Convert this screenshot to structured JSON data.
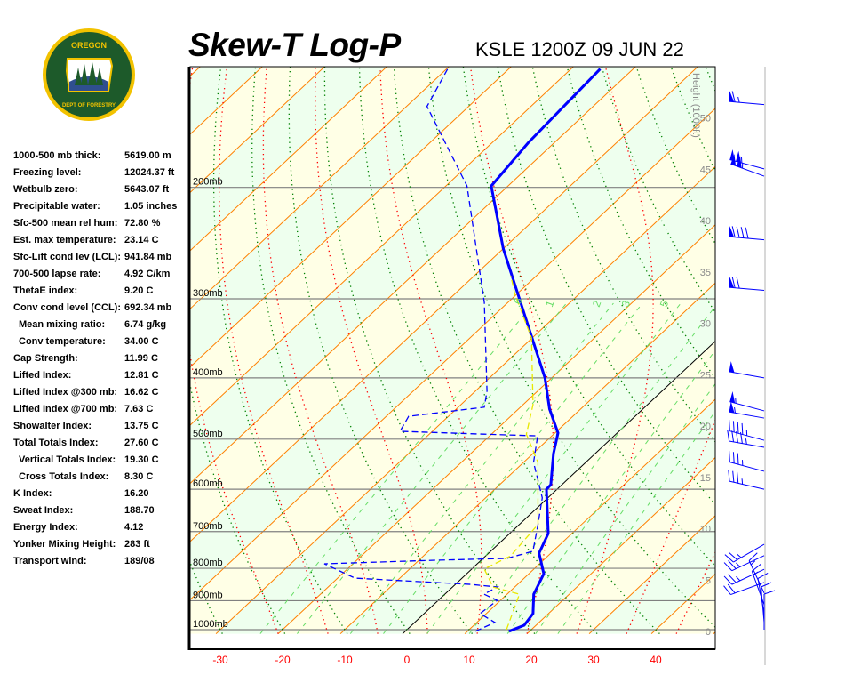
{
  "header": {
    "title": "Skew-T Log-P",
    "station": "KSLE 1200Z 09 JUN 22"
  },
  "logo": {
    "text_top": "OREGON",
    "text_bottom": "DEPARTMENT OF FORESTRY",
    "colors": {
      "ring": "#f2c200",
      "field": "#1d5a2a",
      "sky": "#2f4f8f"
    }
  },
  "stats": [
    {
      "label": "1000-500 mb thick:",
      "value": "5619.00 m"
    },
    {
      "label": "Freezing level:",
      "value": "12024.37 ft"
    },
    {
      "label": "Wetbulb zero:",
      "value": "5643.07 ft"
    },
    {
      "label": "Precipitable water:",
      "value": "1.05 inches"
    },
    {
      "label": "Sfc-500 mean rel hum:",
      "value": "72.80 %"
    },
    {
      "label": "Est. max temperature:",
      "value": "23.14 C"
    },
    {
      "label": "Sfc-Lift cond lev (LCL):",
      "value": "941.84 mb"
    },
    {
      "label": "700-500 lapse rate:",
      "value": "4.92 C/km"
    },
    {
      "label": "ThetaE index:",
      "value": "9.20 C"
    },
    {
      "label": "Conv cond level (CCL):",
      "value": "692.34 mb"
    },
    {
      "label": "Mean mixing ratio:",
      "value": "6.74 g/kg",
      "indent": true
    },
    {
      "label": "Conv temperature:",
      "value": "34.00 C",
      "indent": true
    },
    {
      "label": "Cap Strength:",
      "value": "11.99 C"
    },
    {
      "label": "Lifted Index:",
      "value": "12.81 C"
    },
    {
      "label": "Lifted Index @300 mb:",
      "value": "16.62 C"
    },
    {
      "label": "Lifted Index @700 mb:",
      "value": "7.63 C"
    },
    {
      "label": "Showalter Index:",
      "value": "13.75 C"
    },
    {
      "label": "Total Totals Index:",
      "value": "27.60 C"
    },
    {
      "label": "Vertical Totals Index:",
      "value": "19.30 C",
      "indent": true
    },
    {
      "label": "Cross Totals Index:",
      "value": "8.30 C",
      "indent": true
    },
    {
      "label": "K Index:",
      "value": "16.20"
    },
    {
      "label": "Sweat Index:",
      "value": "188.70"
    },
    {
      "label": "Energy Index:",
      "value": "4.12"
    },
    {
      "label": "Yonker Mixing Height:",
      "value": "283 ft"
    },
    {
      "label": "Transport wind:",
      "value": "189/08"
    }
  ],
  "chart_data": {
    "type": "line",
    "title": "Skew-T Log-P",
    "x_axis": {
      "label": "",
      "units": "C",
      "ticks": [
        -30,
        -20,
        -10,
        0,
        10,
        20,
        30,
        40
      ],
      "tick_color": "#ff0000"
    },
    "y_axis": {
      "scale": "log",
      "units": "mb",
      "range": [
        1010,
        128
      ],
      "pressure_labels": [
        "1000mb",
        "900mb",
        "800mb",
        "700mb",
        "600mb",
        "500mb",
        "400mb",
        "300mb",
        "200mb"
      ],
      "pressure_levels": [
        1000,
        900,
        800,
        700,
        600,
        500,
        400,
        300,
        200
      ]
    },
    "height_axis": {
      "label": "Height (1000ft)",
      "ticks": [
        0,
        5,
        10,
        15,
        20,
        25,
        30,
        35,
        40,
        45,
        50
      ]
    },
    "mixing_ratio_labels": [
      ".6",
      "1",
      "2",
      "3",
      "5"
    ],
    "mixing_ratio_values": [
      0.6,
      1,
      2,
      3,
      5,
      8,
      12,
      16,
      20
    ],
    "isotherm_interval": 10,
    "grid": true,
    "colors": {
      "temperature": "#0000ff",
      "dewpoint": "#0000ff",
      "wetbulb": "#e8e800",
      "isotherm": "#ff8000",
      "dry_adiabat": "#008000",
      "moist_adiabat": "#ff0000",
      "mixing_ratio": "#66dd66",
      "band_a": "#ffffe6",
      "band_b": "#eeffee",
      "isobar": "#808080",
      "barb": "#0000ff"
    },
    "series": [
      {
        "key": "temperature",
        "style": "solid",
        "points": [
          [
            1006,
            16.7
          ],
          [
            984,
            18.1
          ],
          [
            943,
            17.5
          ],
          [
            879,
            14.3
          ],
          [
            816,
            12.4
          ],
          [
            757,
            8.1
          ],
          [
            705,
            6.2
          ],
          [
            600,
            -1.7
          ],
          [
            590,
            -1.8
          ],
          [
            527,
            -6.7
          ],
          [
            489,
            -9.5
          ],
          [
            448,
            -15.0
          ],
          [
            400,
            -21.1
          ],
          [
            335,
            -32.0
          ],
          [
            250,
            -50.0
          ],
          [
            199,
            -62.7
          ],
          [
            170,
            -64.2
          ],
          [
            130,
            -65.3
          ]
        ]
      },
      {
        "key": "dewpoint",
        "style": "dashed",
        "points": [
          [
            1006,
            11.3
          ],
          [
            974,
            12.9
          ],
          [
            943,
            9.0
          ],
          [
            899,
            9.5
          ],
          [
            879,
            6.3
          ],
          [
            856,
            7.2
          ],
          [
            848,
            2.5
          ],
          [
            829,
            -17.2
          ],
          [
            787,
            -24.6
          ],
          [
            777,
            -7.4
          ],
          [
            772,
            3.8
          ],
          [
            752,
            6.8
          ],
          [
            682,
            3.0
          ],
          [
            619,
            -0.9
          ],
          [
            544,
            -8.4
          ],
          [
            494,
            -12.3
          ],
          [
            491,
            -21.2
          ],
          [
            486,
            -35.2
          ],
          [
            460,
            -36.4
          ],
          [
            445,
            -25.8
          ],
          [
            420,
            -28.1
          ],
          [
            304,
            -43.8
          ],
          [
            199,
            -66.6
          ],
          [
            149,
            -86.7
          ],
          [
            129,
            -90.0
          ]
        ]
      },
      {
        "key": "wetbulb",
        "style": "dashed",
        "points": [
          [
            1000,
            16.0
          ],
          [
            879,
            12.0
          ],
          [
            856,
            6.5
          ],
          [
            802,
            2.0
          ],
          [
            765,
            4.0
          ],
          [
            682,
            3.0
          ],
          [
            544,
            -7.7
          ],
          [
            491,
            -14.4
          ],
          [
            441,
            -18.4
          ],
          [
            346,
            -30.1
          ],
          [
            295,
            -40.3
          ],
          [
            276,
            -44.1
          ]
        ]
      }
    ],
    "wind_barbs": [
      {
        "p": 148,
        "dir": 275,
        "kt": 65
      },
      {
        "p": 187,
        "dir": 285,
        "kt": 105
      },
      {
        "p": 192,
        "dir": 290,
        "kt": 105
      },
      {
        "p": 242,
        "dir": 275,
        "kt": 90
      },
      {
        "p": 291,
        "dir": 275,
        "kt": 70
      },
      {
        "p": 400,
        "dir": 280,
        "kt": 50
      },
      {
        "p": 451,
        "dir": 285,
        "kt": 55
      },
      {
        "p": 463,
        "dir": 280,
        "kt": 55
      },
      {
        "p": 502,
        "dir": 285,
        "kt": 45
      },
      {
        "p": 515,
        "dir": 280,
        "kt": 45
      },
      {
        "p": 562,
        "dir": 285,
        "kt": 35
      },
      {
        "p": 600,
        "dir": 283,
        "kt": 35
      },
      {
        "p": 733,
        "dir": 240,
        "kt": 25
      },
      {
        "p": 764,
        "dir": 245,
        "kt": 25
      },
      {
        "p": 803,
        "dir": 245,
        "kt": 25
      },
      {
        "p": 842,
        "dir": 250,
        "kt": 20
      },
      {
        "p": 875,
        "dir": 335,
        "kt": 15
      },
      {
        "p": 913,
        "dir": 340,
        "kt": 15
      },
      {
        "p": 943,
        "dir": 350,
        "kt": 10
      },
      {
        "p": 974,
        "dir": 355,
        "kt": 10
      },
      {
        "p": 1000,
        "dir": 360,
        "kt": 10
      }
    ]
  }
}
